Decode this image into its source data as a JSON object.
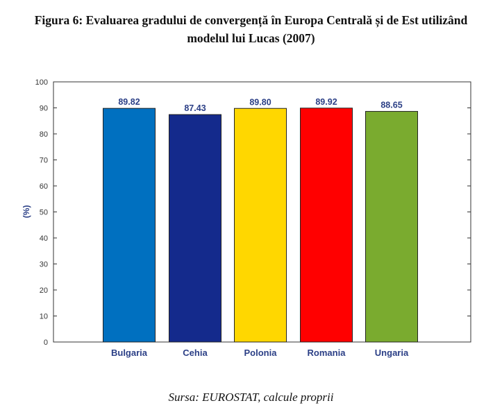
{
  "title_line1": "Figura 6: Evaluarea gradului de convergență în Europa Centrală și de Est utilizând",
  "title_line2": "modelul lui Lucas (2007)",
  "source": "Sursa: EUROSTAT, calcule proprii",
  "chart_data": {
    "type": "bar",
    "title": "Figura 6: Evaluarea gradului de convergență în Europa Centrală și de Est utilizând modelul lui Lucas (2007)",
    "categories": [
      "Bulgaria",
      "Cehia",
      "Polonia",
      "Romania",
      "Ungaria"
    ],
    "values": [
      89.82,
      87.43,
      89.8,
      89.92,
      88.65
    ],
    "value_labels": [
      "89.82",
      "87.43",
      "89.80",
      "89.92",
      "88.65"
    ],
    "colors": [
      "#0070c0",
      "#142a8c",
      "#ffd700",
      "#ff0000",
      "#7aab2f"
    ],
    "xlabel": "",
    "ylabel": "(%)",
    "ylim": [
      0,
      100
    ],
    "yticks": [
      0,
      10,
      20,
      30,
      40,
      50,
      60,
      70,
      80,
      90,
      100
    ],
    "grid": false,
    "legend": "none"
  }
}
